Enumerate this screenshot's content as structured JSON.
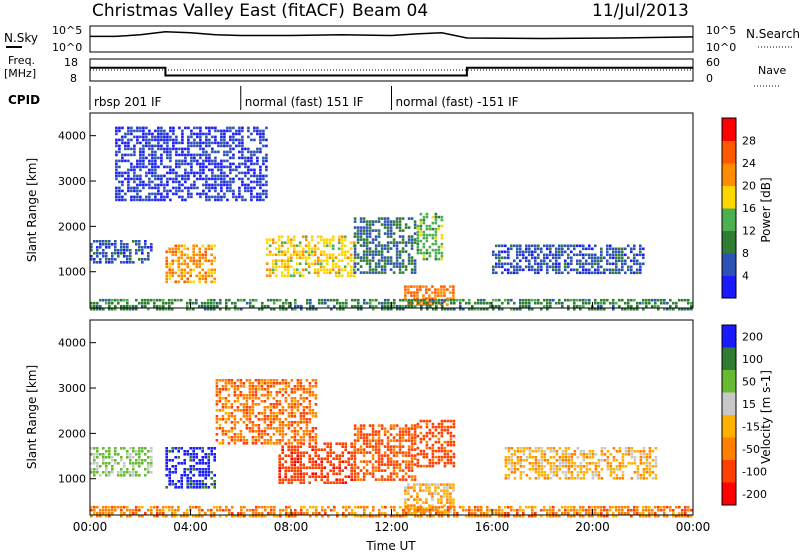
{
  "header": {
    "title": "Christmas Valley East (fitACF)",
    "beam": "Beam 04",
    "date": "11/Jul/2013"
  },
  "panel_labels": {
    "nsky": "N.Sky",
    "nsearch": "N.Search",
    "freq_line1": "Freq.",
    "freq_line2": "[MHz]",
    "nave": "Nave",
    "cpid": "CPID"
  },
  "top_axis": {
    "left_ticks": [
      "10^5",
      "10^0"
    ],
    "right_ticks": [
      "10^5",
      "10^0"
    ]
  },
  "freq_axis": {
    "left_ticks": [
      "18",
      "8"
    ],
    "right_ticks": [
      "60",
      "0"
    ]
  },
  "cpid_segments": [
    {
      "label": "rbsp 201 IF",
      "start_hour": 0,
      "end_hour": 6
    },
    {
      "label": "normal (fast) 151 IF",
      "start_hour": 6,
      "end_hour": 12
    },
    {
      "label": "normal (fast) -151 IF",
      "start_hour": 12,
      "end_hour": 24
    }
  ],
  "colors": {
    "power_scale": [
      "#1a1aff",
      "#2d52b5",
      "#2e7d32",
      "#4caf50",
      "#ffd700",
      "#ff8c00",
      "#ff5a00",
      "#ff0000"
    ],
    "velocity_scale": [
      "#1a1aff",
      "#2e7d32",
      "#66bb33",
      "#c8c8c8",
      "#ffb000",
      "#ff8000",
      "#ff4000",
      "#ff0000"
    ]
  },
  "chart_data": [
    {
      "type": "line",
      "panel": "sky-noise",
      "title": "",
      "ylabel": "N.Sky",
      "y2label": "N.Search",
      "y_scale": "log",
      "ylim": [
        1,
        100000
      ],
      "x": [
        0,
        1,
        2,
        3,
        4,
        5,
        6,
        8,
        10,
        12,
        13,
        14,
        15,
        18,
        21,
        24
      ],
      "series": [
        {
          "name": "N.Sky",
          "values": [
            1000,
            1000,
            2000,
            8000,
            5000,
            2000,
            1500,
            1500,
            2000,
            1500,
            3000,
            5000,
            500,
            400,
            500,
            800
          ]
        }
      ]
    },
    {
      "type": "line",
      "panel": "frequency",
      "ylabel": "Freq. [MHz]",
      "y2label": "Nave",
      "ylim": [
        8,
        18
      ],
      "y2lim": [
        0,
        60
      ],
      "x": [
        0,
        3,
        3,
        15,
        15,
        24
      ],
      "series": [
        {
          "name": "Freq.",
          "values": [
            14,
            14,
            10.5,
            10.5,
            14,
            14
          ]
        }
      ]
    },
    {
      "type": "heatmap",
      "panel": "power",
      "title": "Power",
      "xlabel": "",
      "ylabel": "Slant Range [km]",
      "colorbar_label": "Power [dB]",
      "colorbar_ticks": [
        "4",
        "8",
        "12",
        "16",
        "20",
        "24",
        "28"
      ],
      "xlim": [
        0,
        24
      ],
      "ylim": [
        200,
        4500
      ],
      "x_ticks": [
        "00:00",
        "04:00",
        "08:00",
        "12:00",
        "16:00",
        "20:00",
        "00:00"
      ],
      "y_ticks": [
        "1000",
        "2000",
        "3000",
        "4000"
      ],
      "regions": [
        {
          "x": [
            0,
            2.5
          ],
          "y": [
            1200,
            1700
          ],
          "value": 6
        },
        {
          "x": [
            3.0,
            5.0
          ],
          "y": [
            800,
            1600
          ],
          "value": 22
        },
        {
          "x": [
            7.0,
            10.5
          ],
          "y": [
            900,
            1800
          ],
          "value": 18
        },
        {
          "x": [
            10.5,
            13.0
          ],
          "y": [
            1000,
            2200
          ],
          "value": 8
        },
        {
          "x": [
            12.5,
            14.5
          ],
          "y": [
            300,
            700
          ],
          "value": 24
        },
        {
          "x": [
            13.0,
            14.0
          ],
          "y": [
            1300,
            2300
          ],
          "value": 14
        },
        {
          "x": [
            16.0,
            22.0
          ],
          "y": [
            1000,
            1600
          ],
          "value": 6
        },
        {
          "x": [
            1.0,
            7.0
          ],
          "y": [
            2600,
            4200
          ],
          "value": 4
        },
        {
          "x": [
            0,
            24
          ],
          "y": [
            200,
            400
          ],
          "value": 10
        }
      ]
    },
    {
      "type": "heatmap",
      "panel": "velocity",
      "title": "Velocity",
      "xlabel": "Time UT",
      "ylabel": "Slant Range [km]",
      "colorbar_label": "Velocity [m s-1]",
      "colorbar_ticks": [
        "200",
        "100",
        "50",
        "15",
        "-15",
        "-50",
        "-100",
        "-200"
      ],
      "xlim": [
        0,
        24
      ],
      "ylim": [
        200,
        4500
      ],
      "x_ticks": [
        "00:00",
        "04:00",
        "08:00",
        "12:00",
        "16:00",
        "20:00",
        "00:00"
      ],
      "y_ticks": [
        "1000",
        "2000",
        "3000",
        "4000"
      ],
      "regions": [
        {
          "x": [
            0,
            2.5
          ],
          "y": [
            1100,
            1700
          ],
          "value": 60
        },
        {
          "x": [
            3.0,
            5.0
          ],
          "y": [
            800,
            1700
          ],
          "value": 220
        },
        {
          "x": [
            7.5,
            10.5
          ],
          "y": [
            900,
            1800
          ],
          "value": -80
        },
        {
          "x": [
            10.5,
            13.0
          ],
          "y": [
            1000,
            2200
          ],
          "value": -60
        },
        {
          "x": [
            12.5,
            14.5
          ],
          "y": [
            300,
            900
          ],
          "value": 0
        },
        {
          "x": [
            13.0,
            14.5
          ],
          "y": [
            1300,
            2300
          ],
          "value": -70
        },
        {
          "x": [
            16.5,
            22.5
          ],
          "y": [
            1000,
            1700
          ],
          "value": 0
        },
        {
          "x": [
            5.0,
            9.0
          ],
          "y": [
            1800,
            3200
          ],
          "value": -40
        },
        {
          "x": [
            0,
            24
          ],
          "y": [
            200,
            400
          ],
          "value": -30
        }
      ]
    }
  ]
}
